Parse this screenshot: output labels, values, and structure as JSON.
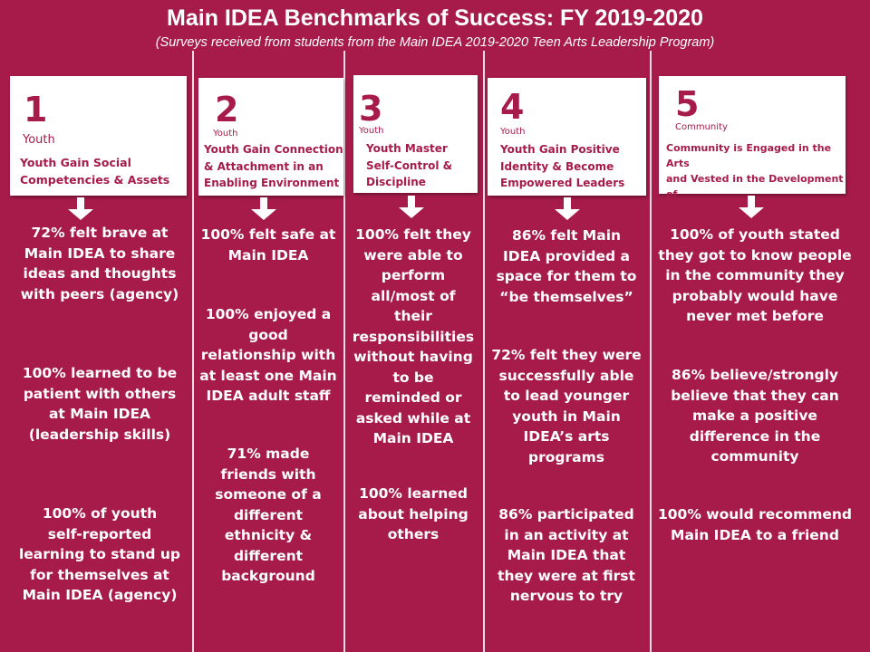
{
  "header": {
    "title": "Main IDEA Benchmarks of Success: FY 2019-2020",
    "subtitle": "(Surveys received from students from the Main IDEA 2019-2020 Teen Arts Leadership Program)"
  },
  "colors": {
    "background": "#a61b4a",
    "card": "#ffffff",
    "text": "#ffffff"
  },
  "columns": [
    {
      "number": "1",
      "category": "Youth",
      "goal": "Youth Gain Social\nCompetencies & Assets",
      "stats": [
        "72% felt brave at\nMain IDEA to share\nideas and thoughts\nwith peers (agency)",
        "100% learned to be\npatient with others\nat Main IDEA\n(leadership skills)",
        "100% of youth\nself-reported\nlearning to stand up\nfor themselves at\nMain IDEA (agency)"
      ]
    },
    {
      "number": "2",
      "category": "Youth",
      "goal": "Youth Gain Connection\n& Attachment in an\nEnabling Environment",
      "stats": [
        "100% felt safe at\nMain IDEA",
        "100% enjoyed a\ngood\nrelationship with\nat least one Main\nIDEA adult staff",
        "71% made\nfriends with\nsomeone of a\ndifferent\nethnicity &\ndifferent\nbackground"
      ]
    },
    {
      "number": "3",
      "category": "Youth",
      "goal": "Youth Master\nSelf-Control &\nDiscipline",
      "stats": [
        "100% felt they\nwere able to\nperform\nall/most of\ntheir\nresponsibilities\nwithout having\nto be\nreminded or\nasked while at\nMain IDEA",
        "100% learned\nabout helping\nothers"
      ]
    },
    {
      "number": "4",
      "category": "Youth",
      "goal": "Youth Gain Positive\nIdentity & Become\nEmpowered Leaders",
      "stats": [
        "86% felt  Main\nIDEA provided a\nspace for them to\n“be themselves”",
        "72% felt they were\nsuccessfully able\nto lead younger\nyouth in Main\nIDEA’s arts\nprograms",
        "86% participated\nin an activity at\nMain IDEA that\nthey were at first\nnervous to try"
      ]
    },
    {
      "number": "5",
      "category": "Community",
      "goal": "Community is Engaged in the Arts\nand Vested in the Development of\nYouth as Empowered Leaders",
      "stats": [
        "100% of youth stated\nthey got to know people\nin the community they\nprobably would have\nnever met before",
        "86% believe/strongly\nbelieve that they can\nmake a positive\ndifference in the\ncommunity",
        "100% would recommend\nMain IDEA to a friend"
      ]
    }
  ]
}
